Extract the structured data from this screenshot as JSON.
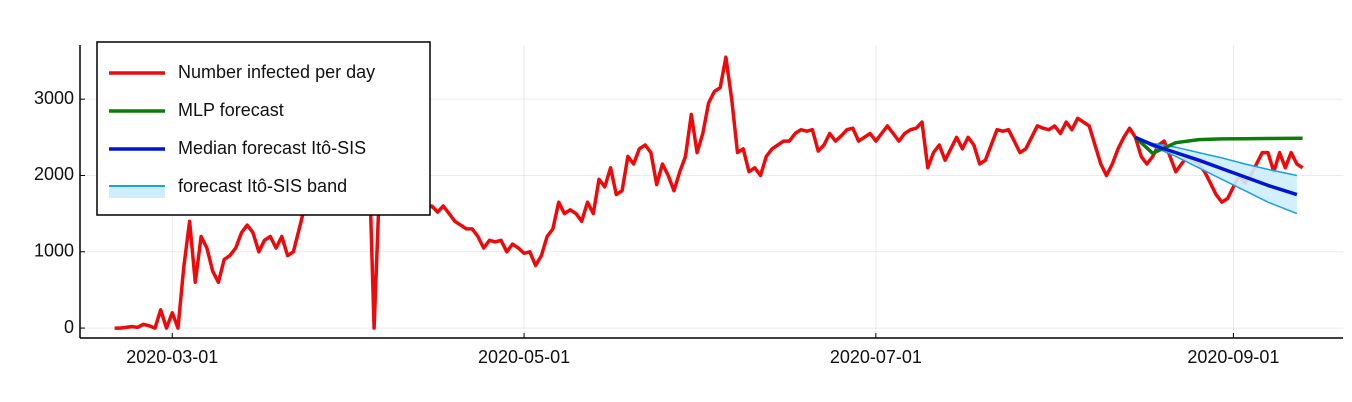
{
  "chart_data": {
    "type": "line",
    "xlim": [
      "2020-02-14",
      "2020-09-20"
    ],
    "ylim": [
      -130,
      3710
    ],
    "xticks": [
      "2020-03-01",
      "2020-05-01",
      "2020-07-01",
      "2020-09-01"
    ],
    "yticks": [
      0,
      1000,
      2000,
      3000
    ],
    "grid": true,
    "legend": "top-left",
    "series": [
      {
        "name": "Number infected per day",
        "color": "#ee0a0a",
        "x": [
          "2020-02-20",
          "2020-02-21",
          "2020-02-22",
          "2020-02-23",
          "2020-02-24",
          "2020-02-25",
          "2020-02-26",
          "2020-02-27",
          "2020-02-28",
          "2020-02-29",
          "2020-03-01",
          "2020-03-02",
          "2020-03-03",
          "2020-03-04",
          "2020-03-05",
          "2020-03-06",
          "2020-03-07",
          "2020-03-08",
          "2020-03-09",
          "2020-03-10",
          "2020-03-11",
          "2020-03-12",
          "2020-03-13",
          "2020-03-14",
          "2020-03-15",
          "2020-03-16",
          "2020-03-17",
          "2020-03-18",
          "2020-03-19",
          "2020-03-20",
          "2020-03-21",
          "2020-03-22",
          "2020-03-23",
          "2020-03-24",
          "2020-03-25",
          "2020-03-26",
          "2020-03-27",
          "2020-03-28",
          "2020-03-29",
          "2020-03-30",
          "2020-03-31",
          "2020-04-01",
          "2020-04-02",
          "2020-04-03",
          "2020-04-04",
          "2020-04-05",
          "2020-04-06",
          "2020-04-07",
          "2020-04-08",
          "2020-04-09",
          "2020-04-10",
          "2020-04-11",
          "2020-04-12",
          "2020-04-13",
          "2020-04-14",
          "2020-04-15",
          "2020-04-16",
          "2020-04-17",
          "2020-04-18",
          "2020-04-19",
          "2020-04-20",
          "2020-04-21",
          "2020-04-22",
          "2020-04-23",
          "2020-04-24",
          "2020-04-25",
          "2020-04-26",
          "2020-04-27",
          "2020-04-28",
          "2020-04-29",
          "2020-04-30",
          "2020-05-01",
          "2020-05-02",
          "2020-05-03",
          "2020-05-04",
          "2020-05-05",
          "2020-05-06",
          "2020-05-07",
          "2020-05-08",
          "2020-05-09",
          "2020-05-10",
          "2020-05-11",
          "2020-05-12",
          "2020-05-13",
          "2020-05-14",
          "2020-05-15",
          "2020-05-16",
          "2020-05-17",
          "2020-05-18",
          "2020-05-19",
          "2020-05-20",
          "2020-05-21",
          "2020-05-22",
          "2020-05-23",
          "2020-05-24",
          "2020-05-25",
          "2020-05-26",
          "2020-05-27",
          "2020-05-28",
          "2020-05-29",
          "2020-05-30",
          "2020-05-31",
          "2020-06-01",
          "2020-06-02",
          "2020-06-03",
          "2020-06-04",
          "2020-06-05",
          "2020-06-06",
          "2020-06-07",
          "2020-06-08",
          "2020-06-09",
          "2020-06-10",
          "2020-06-11",
          "2020-06-12",
          "2020-06-13",
          "2020-06-14",
          "2020-06-15",
          "2020-06-16",
          "2020-06-17",
          "2020-06-18",
          "2020-06-19",
          "2020-06-20",
          "2020-06-21",
          "2020-06-22",
          "2020-06-23",
          "2020-06-24",
          "2020-06-25",
          "2020-06-26",
          "2020-06-27",
          "2020-06-28",
          "2020-06-29",
          "2020-06-30",
          "2020-07-01",
          "2020-07-02",
          "2020-07-03",
          "2020-07-04",
          "2020-07-05",
          "2020-07-06",
          "2020-07-07",
          "2020-07-08",
          "2020-07-09",
          "2020-07-10",
          "2020-07-11",
          "2020-07-12",
          "2020-07-13",
          "2020-07-14",
          "2020-07-15",
          "2020-07-16",
          "2020-07-17",
          "2020-07-18",
          "2020-07-19",
          "2020-07-20",
          "2020-07-21",
          "2020-07-22",
          "2020-07-23",
          "2020-07-24",
          "2020-07-25",
          "2020-07-26",
          "2020-07-27",
          "2020-07-28",
          "2020-07-29",
          "2020-07-30",
          "2020-07-31",
          "2020-08-01",
          "2020-08-02",
          "2020-08-03",
          "2020-08-04",
          "2020-08-05",
          "2020-08-06",
          "2020-08-07",
          "2020-08-08",
          "2020-08-09",
          "2020-08-10",
          "2020-08-11",
          "2020-08-12",
          "2020-08-13",
          "2020-08-14",
          "2020-08-15",
          "2020-08-16",
          "2020-08-17",
          "2020-08-18",
          "2020-08-19",
          "2020-08-20",
          "2020-08-21",
          "2020-08-22",
          "2020-08-23",
          "2020-08-24",
          "2020-08-25",
          "2020-08-26",
          "2020-08-27",
          "2020-08-28",
          "2020-08-29",
          "2020-08-30",
          "2020-08-31",
          "2020-09-01",
          "2020-09-02",
          "2020-09-03",
          "2020-09-04",
          "2020-09-05",
          "2020-09-06",
          "2020-09-07",
          "2020-09-08",
          "2020-09-09",
          "2020-09-10",
          "2020-09-11",
          "2020-09-12",
          "2020-09-13"
        ],
        "values": [
          0,
          0,
          10,
          20,
          10,
          50,
          30,
          0,
          240,
          0,
          200,
          0,
          800,
          1400,
          600,
          1200,
          1050,
          750,
          600,
          900,
          950,
          1050,
          1250,
          1350,
          1250,
          1000,
          1150,
          1200,
          1050,
          1200,
          950,
          1000,
          1300,
          1600,
          2000,
          2300,
          2500,
          2600,
          2700,
          2800,
          2900,
          2800,
          2700,
          2600,
          2500,
          0,
          2000,
          1900,
          1800,
          1700,
          1650,
          1650,
          1620,
          1600,
          1580,
          1600,
          1520,
          1600,
          1500,
          1400,
          1350,
          1300,
          1300,
          1200,
          1050,
          1150,
          1130,
          1150,
          1000,
          1100,
          1050,
          980,
          1000,
          820,
          950,
          1200,
          1300,
          1650,
          1500,
          1550,
          1500,
          1400,
          1650,
          1500,
          1950,
          1850,
          2100,
          1750,
          1800,
          2250,
          2150,
          2350,
          2400,
          2300,
          1880,
          2150,
          2000,
          1800,
          2050,
          2250,
          2800,
          2300,
          2550,
          2950,
          3100,
          3150,
          3550,
          3000,
          2300,
          2350,
          2050,
          2100,
          2000,
          2250,
          2350,
          2400,
          2450,
          2450,
          2550,
          2600,
          2580,
          2600,
          2320,
          2400,
          2550,
          2450,
          2520,
          2600,
          2620,
          2450,
          2500,
          2550,
          2450,
          2550,
          2650,
          2550,
          2450,
          2550,
          2600,
          2620,
          2700,
          2100,
          2300,
          2400,
          2200,
          2350,
          2500,
          2350,
          2500,
          2400,
          2150,
          2200,
          2400,
          2600,
          2580,
          2600,
          2450,
          2300,
          2350,
          2500,
          2650,
          2620,
          2600,
          2650,
          2550,
          2700,
          2600,
          2750,
          2700,
          2650,
          2400,
          2150,
          2000,
          2150,
          2350,
          2500,
          2620,
          2500,
          2250,
          2150,
          2250,
          2400,
          2450,
          2250,
          2050,
          2150,
          2250,
          2200,
          2150,
          2050,
          1900,
          1750,
          1650,
          1700,
          1850,
          2000,
          1900,
          2000,
          2150,
          2300,
          2300,
          2050,
          2300,
          2100,
          2300,
          2150,
          2100
        ]
      },
      {
        "name": "MLP forecast",
        "color": "#0a7d0a",
        "x": [
          "2020-08-15",
          "2020-08-18",
          "2020-08-22",
          "2020-08-26",
          "2020-08-30",
          "2020-09-03",
          "2020-09-07",
          "2020-09-13"
        ],
        "values": [
          2500,
          2290,
          2430,
          2470,
          2480,
          2482,
          2485,
          2488
        ]
      },
      {
        "name": "Median forecast Itô-SIS",
        "color": "#0014d4",
        "x": [
          "2020-08-15",
          "2020-08-18",
          "2020-08-22",
          "2020-08-26",
          "2020-08-30",
          "2020-09-03",
          "2020-09-07",
          "2020-09-12"
        ],
        "values": [
          2500,
          2400,
          2300,
          2200,
          2090,
          1980,
          1870,
          1750
        ]
      },
      {
        "name": "forecast Itô-SIS band",
        "color": "#1a9ee6",
        "fill": "#cdeefc",
        "x": [
          "2020-08-15",
          "2020-08-18",
          "2020-08-22",
          "2020-08-26",
          "2020-08-30",
          "2020-09-03",
          "2020-09-07",
          "2020-09-12"
        ],
        "upper": [
          2500,
          2420,
          2370,
          2300,
          2230,
          2150,
          2080,
          2000
        ],
        "lower": [
          2500,
          2380,
          2250,
          2100,
          1950,
          1800,
          1650,
          1500
        ]
      }
    ]
  }
}
